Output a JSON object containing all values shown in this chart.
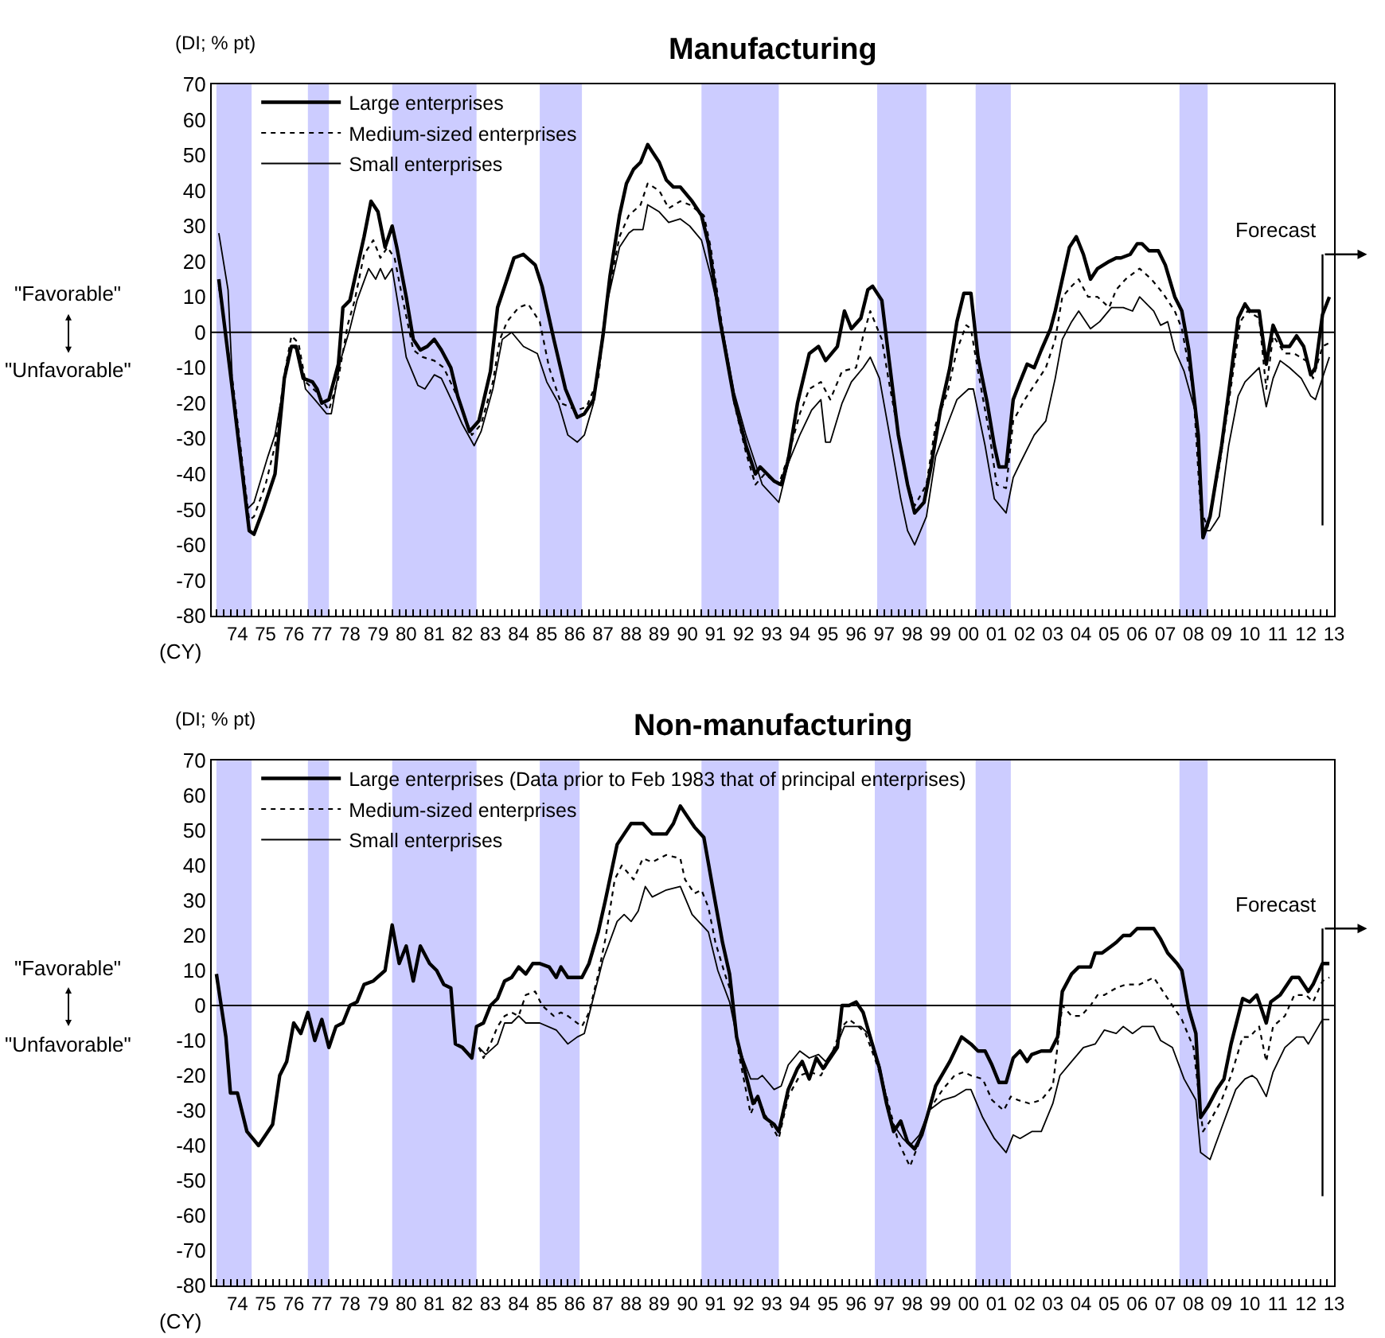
{
  "chart_data": [
    {
      "type": "line",
      "title": "Manufacturing",
      "ylabel": "(DI; % pt)",
      "xlabel": "(CY)",
      "annotations": [
        "\"Favorable\"",
        "\"Unfavorable\""
      ],
      "xlim": [
        "1973-08",
        "2013-07"
      ],
      "ylim": [
        -80,
        70
      ],
      "yticks": [
        -80,
        -70,
        -60,
        -50,
        -40,
        -30,
        -20,
        -10,
        0,
        10,
        20,
        30,
        40,
        50,
        60,
        70
      ],
      "xticks": [
        {
          "value": "1974-07",
          "label": "74"
        },
        {
          "value": "1975-07",
          "label": "75"
        },
        {
          "value": "1976-07",
          "label": "76"
        },
        {
          "value": "1977-07",
          "label": "77"
        },
        {
          "value": "1978-07",
          "label": "78"
        },
        {
          "value": "1979-07",
          "label": "79"
        },
        {
          "value": "1980-07",
          "label": "80"
        },
        {
          "value": "1981-07",
          "label": "81"
        },
        {
          "value": "1982-07",
          "label": "82"
        },
        {
          "value": "1983-07",
          "label": "83"
        },
        {
          "value": "1984-07",
          "label": "84"
        },
        {
          "value": "1985-07",
          "label": "85"
        },
        {
          "value": "1986-07",
          "label": "86"
        },
        {
          "value": "1987-07",
          "label": "87"
        },
        {
          "value": "1988-07",
          "label": "88"
        },
        {
          "value": "1989-07",
          "label": "89"
        },
        {
          "value": "1990-07",
          "label": "90"
        },
        {
          "value": "1991-07",
          "label": "91"
        },
        {
          "value": "1992-07",
          "label": "92"
        },
        {
          "value": "1993-07",
          "label": "93"
        },
        {
          "value": "1994-07",
          "label": "94"
        },
        {
          "value": "1995-07",
          "label": "95"
        },
        {
          "value": "1996-07",
          "label": "96"
        },
        {
          "value": "1997-07",
          "label": "97"
        },
        {
          "value": "1998-07",
          "label": "98"
        },
        {
          "value": "1999-07",
          "label": "99"
        },
        {
          "value": "2000-07",
          "label": "00"
        },
        {
          "value": "2001-07",
          "label": "01"
        },
        {
          "value": "2002-07",
          "label": "02"
        },
        {
          "value": "2003-07",
          "label": "03"
        },
        {
          "value": "2004-07",
          "label": "04"
        },
        {
          "value": "2005-07",
          "label": "05"
        },
        {
          "value": "2006-07",
          "label": "06"
        },
        {
          "value": "2007-07",
          "label": "07"
        },
        {
          "value": "2008-07",
          "label": "08"
        },
        {
          "value": "2009-07",
          "label": "09"
        },
        {
          "value": "2010-07",
          "label": "10"
        },
        {
          "value": "2011-07",
          "label": "11"
        },
        {
          "value": "2012-07",
          "label": "12"
        },
        {
          "value": "2013-07",
          "label": "13"
        }
      ],
      "grid": false,
      "legend": "top left",
      "bands": [
        {
          "axis": "x",
          "from": "1973-10",
          "to": "1975-01",
          "color": "#ccccff"
        },
        {
          "axis": "x",
          "from": "1977-01",
          "to": "1977-10",
          "color": "#ccccff"
        },
        {
          "axis": "x",
          "from": "1980-01",
          "to": "1983-01",
          "color": "#ccccff"
        },
        {
          "axis": "x",
          "from": "1985-04",
          "to": "1986-10",
          "color": "#ccccff"
        },
        {
          "axis": "x",
          "from": "1991-01",
          "to": "1993-10",
          "color": "#ccccff"
        },
        {
          "axis": "x",
          "from": "1997-04",
          "to": "1999-01",
          "color": "#ccccff"
        },
        {
          "axis": "x",
          "from": "2000-10",
          "to": "2002-01",
          "color": "#ccccff"
        },
        {
          "axis": "x",
          "from": "2008-01",
          "to": "2009-01",
          "color": "#ccccff"
        }
      ],
      "ref_lines": [
        {
          "axis": "y",
          "value": 0,
          "color": "#000000"
        },
        {
          "axis": "x",
          "value": "2013-02",
          "label": "Forecast",
          "color": "#000000"
        }
      ],
      "series": [
        {
          "name": "Large enterprises",
          "color": "#000000",
          "line_style": "solid",
          "x": [
            "1973-11",
            "1974-05",
            "1974-12",
            "1975-02",
            "1975-06",
            "1975-11",
            "1976-03",
            "1976-06",
            "1976-08",
            "1976-11",
            "1977-03",
            "1977-05",
            "1977-07",
            "1977-10",
            "1978-02",
            "1978-04",
            "1978-07",
            "1979-01",
            "1979-04",
            "1979-07",
            "1979-10",
            "1980-01",
            "1980-03",
            "1980-07",
            "1980-10",
            "1981-01",
            "1981-04",
            "1981-07",
            "1981-10",
            "1982-02",
            "1982-05",
            "1982-10",
            "1983-02",
            "1983-07",
            "1983-10",
            "1984-02",
            "1984-05",
            "1984-09",
            "1985-02",
            "1985-05",
            "1985-10",
            "1986-03",
            "1986-08",
            "1986-11",
            "1987-03",
            "1987-07",
            "1987-10",
            "1988-02",
            "1988-05",
            "1988-08",
            "1988-11",
            "1989-02",
            "1989-04",
            "1989-07",
            "1989-10",
            "1990-01",
            "1990-04",
            "1990-09",
            "1991-01",
            "1991-04",
            "1991-09",
            "1992-03",
            "1992-08",
            "1992-12",
            "1993-02",
            "1993-08",
            "1993-11",
            "1994-02",
            "1994-06",
            "1994-11",
            "1995-03",
            "1995-06",
            "1995-11",
            "1996-02",
            "1996-05",
            "1996-09",
            "1996-12",
            "1997-02",
            "1997-06",
            "1997-08",
            "1998-01",
            "1998-05",
            "1998-08",
            "1998-12",
            "1999-03",
            "1999-07",
            "1999-11",
            "2000-02",
            "2000-05",
            "2000-08",
            "2000-11",
            "2001-03",
            "2001-06",
            "2001-08",
            "2001-11",
            "2002-02",
            "2002-05",
            "2002-08",
            "2002-11",
            "2003-02",
            "2003-06",
            "2003-08",
            "2003-11",
            "2004-02",
            "2004-05",
            "2004-08",
            "2004-11",
            "2005-02",
            "2005-07",
            "2005-10",
            "2005-12",
            "2006-04",
            "2006-07",
            "2006-09",
            "2006-12",
            "2007-04",
            "2007-07",
            "2007-11",
            "2008-02",
            "2008-05",
            "2008-09",
            "2008-11",
            "2009-02",
            "2009-07",
            "2009-10",
            "2010-02",
            "2010-05",
            "2010-07",
            "2010-11",
            "2011-02",
            "2011-05",
            "2011-09",
            "2011-12",
            "2012-03",
            "2012-06",
            "2012-09",
            "2012-11",
            "2013-02",
            "2013-05"
          ],
          "values": [
            15,
            -17,
            -56,
            -57,
            -50,
            -40,
            -13,
            -4,
            -4,
            -13,
            -14,
            -16,
            -20,
            -19,
            -9,
            7,
            9,
            27,
            37,
            34,
            24,
            30,
            24,
            10,
            -2,
            -5,
            -4,
            -2,
            -5,
            -10,
            -18,
            -28,
            -25,
            -11,
            7,
            15,
            21,
            22,
            19,
            13,
            -2,
            -16,
            -24,
            -23,
            -19,
            -1,
            16,
            33,
            42,
            46,
            48,
            53,
            51,
            48,
            43,
            41,
            41,
            37,
            33,
            25,
            3,
            -19,
            -32,
            -40,
            -38,
            -42,
            -43,
            -36,
            -20,
            -6,
            -4,
            -8,
            -4,
            6,
            1,
            4,
            12,
            13,
            9,
            -2,
            -29,
            -43,
            -51,
            -48,
            -38,
            -22,
            -10,
            3,
            11,
            11,
            -7,
            -20,
            -32,
            -38,
            -38,
            -19,
            -14,
            -9,
            -10,
            -5,
            1,
            6,
            15,
            24,
            27,
            22,
            15,
            18,
            20,
            21,
            21,
            22,
            25,
            25,
            23,
            23,
            19,
            10,
            6,
            -5,
            -29,
            -58,
            -52,
            -32,
            -17,
            4,
            8,
            6,
            6,
            -9,
            2,
            -4,
            -4,
            -1,
            -4,
            -12,
            -10,
            5,
            10
          ]
        },
        {
          "name": "Medium-sized enterprises",
          "color": "#000000",
          "line_style": "dotted",
          "x": [
            "1973-11",
            "1974-05",
            "1974-12",
            "1975-02",
            "1975-07",
            "1975-11",
            "1976-03",
            "1976-06",
            "1976-09",
            "1976-12",
            "1977-05",
            "1977-10",
            "1978-02",
            "1978-06",
            "1978-09",
            "1979-01",
            "1979-05",
            "1979-08",
            "1979-11",
            "1980-02",
            "1980-05",
            "1980-10",
            "1981-02",
            "1981-07",
            "1981-11",
            "1982-04",
            "1982-11",
            "1983-03",
            "1983-08",
            "1983-11",
            "1984-02",
            "1984-07",
            "1984-11",
            "1985-04",
            "1985-08",
            "1986-01",
            "1986-08",
            "1986-12",
            "1987-05",
            "1987-09",
            "1988-02",
            "1988-06",
            "1988-11",
            "1989-02",
            "1989-07",
            "1989-11",
            "1990-04",
            "1990-08",
            "1991-02",
            "1991-05",
            "1991-10",
            "1992-03",
            "1992-08",
            "1992-12",
            "1993-04",
            "1993-10",
            "1994-02",
            "1994-07",
            "1994-11",
            "1995-04",
            "1995-08",
            "1996-01",
            "1996-07",
            "1996-10",
            "1997-01",
            "1997-06",
            "1997-09",
            "1998-02",
            "1998-05",
            "1998-08",
            "1999-01",
            "1999-05",
            "1999-10",
            "2000-02",
            "2000-06",
            "2000-08",
            "2000-11",
            "2001-04",
            "2001-07",
            "2001-11",
            "2002-02",
            "2002-07",
            "2002-11",
            "2003-04",
            "2003-08",
            "2003-11",
            "2004-03",
            "2004-06",
            "2004-10",
            "2005-02",
            "2005-07",
            "2005-10",
            "2006-02",
            "2006-08",
            "2007-01",
            "2007-06",
            "2007-11",
            "2008-02",
            "2008-07",
            "2008-10",
            "2009-01",
            "2009-06",
            "2009-10",
            "2010-03",
            "2010-06",
            "2010-11",
            "2011-02",
            "2011-05",
            "2011-10",
            "2012-02",
            "2012-07",
            "2012-10",
            "2013-02",
            "2013-05"
          ],
          "values": [
            13,
            -14,
            -53,
            -52,
            -43,
            -32,
            -12,
            -1,
            -3,
            -14,
            -17,
            -22,
            -13,
            2,
            9,
            22,
            26,
            21,
            24,
            21,
            11,
            -5,
            -7,
            -8,
            -10,
            -17,
            -29,
            -26,
            -14,
            -2,
            3,
            7,
            8,
            3,
            -10,
            -20,
            -22,
            -21,
            -13,
            10,
            27,
            33,
            36,
            42,
            40,
            35,
            37,
            36,
            33,
            24,
            1,
            -20,
            -34,
            -43,
            -40,
            -43,
            -35,
            -23,
            -16,
            -14,
            -19,
            -11,
            -10,
            -1,
            6,
            -2,
            -14,
            -32,
            -43,
            -49,
            -43,
            -26,
            -17,
            -5,
            2,
            1,
            -11,
            -29,
            -43,
            -44,
            -25,
            -19,
            -15,
            -10,
            -2,
            10,
            13,
            15,
            10,
            10,
            7,
            12,
            15,
            18,
            15,
            11,
            6,
            1,
            -17,
            -50,
            -55,
            -38,
            -20,
            3,
            6,
            4,
            -16,
            -1,
            -6,
            -6,
            -8,
            -13,
            -4,
            -3
          ]
        },
        {
          "name": "Small enterprises",
          "color": "#000000",
          "line_style": "solid",
          "x": [
            "1973-11",
            "1974-03",
            "1974-05",
            "1974-11",
            "1975-02",
            "1975-08",
            "1975-11",
            "1976-03",
            "1976-06",
            "1976-09",
            "1976-12",
            "1977-04",
            "1977-09",
            "1977-11",
            "1978-03",
            "1978-07",
            "1978-10",
            "1979-03",
            "1979-06",
            "1979-08",
            "1979-10",
            "1980-01",
            "1980-04",
            "1980-07",
            "1980-12",
            "1981-03",
            "1981-07",
            "1981-10",
            "1982-03",
            "1982-07",
            "1982-12",
            "1983-03",
            "1983-08",
            "1983-12",
            "1984-04",
            "1984-09",
            "1985-03",
            "1985-07",
            "1985-12",
            "1986-04",
            "1986-08",
            "1986-11",
            "1987-03",
            "1987-08",
            "1988-02",
            "1988-06",
            "1988-08",
            "1988-12",
            "1989-02",
            "1989-07",
            "1989-11",
            "1990-04",
            "1990-08",
            "1991-01",
            "1991-05",
            "1991-10",
            "1992-03",
            "1992-08",
            "1992-12",
            "1993-03",
            "1993-10",
            "1994-02",
            "1994-07",
            "1994-12",
            "1995-04",
            "1995-06",
            "1995-08",
            "1996-01",
            "1996-05",
            "1996-10",
            "1997-01",
            "1997-05",
            "1997-09",
            "1998-02",
            "1998-05",
            "1998-08",
            "1999-01",
            "1999-05",
            "1999-10",
            "2000-02",
            "2000-07",
            "2000-09",
            "2001-02",
            "2001-06",
            "2001-11",
            "2002-02",
            "2002-05",
            "2002-11",
            "2003-04",
            "2003-08",
            "2003-11",
            "2004-03",
            "2004-06",
            "2004-11",
            "2005-03",
            "2005-08",
            "2006-01",
            "2006-05",
            "2006-08",
            "2007-02",
            "2007-05",
            "2007-08",
            "2007-11",
            "2008-03",
            "2008-08",
            "2008-11",
            "2009-02",
            "2009-06",
            "2009-10",
            "2010-02",
            "2010-05",
            "2010-08",
            "2010-11",
            "2011-02",
            "2011-05",
            "2011-08",
            "2011-12",
            "2012-05",
            "2012-09",
            "2012-11",
            "2013-03",
            "2013-05"
          ],
          "values": [
            28,
            12,
            -16,
            -50,
            -48,
            -35,
            -29,
            -14,
            -4,
            -5,
            -16,
            -19,
            -23,
            -23,
            -8,
            1,
            9,
            18,
            15,
            18,
            15,
            18,
            6,
            -7,
            -15,
            -16,
            -12,
            -13,
            -20,
            -26,
            -32,
            -28,
            -16,
            -2,
            0,
            -4,
            -6,
            -14,
            -20,
            -29,
            -31,
            -29,
            -20,
            6,
            24,
            28,
            29,
            29,
            36,
            34,
            31,
            32,
            30,
            26,
            16,
            1,
            -17,
            -29,
            -37,
            -43,
            -48,
            -37,
            -29,
            -22,
            -19,
            -31,
            -31,
            -20,
            -14,
            -10,
            -7,
            -13,
            -28,
            -47,
            -56,
            -60,
            -52,
            -35,
            -26,
            -19,
            -16,
            -16,
            -32,
            -47,
            -51,
            -41,
            -37,
            -29,
            -25,
            -13,
            -2,
            3,
            6,
            1,
            3,
            7,
            7,
            6,
            10,
            6,
            2,
            3,
            -5,
            -11,
            -23,
            -56,
            -56,
            -52,
            -32,
            -18,
            -14,
            -12,
            -10,
            -21,
            -13,
            -8,
            -10,
            -13,
            -18,
            -19,
            -11,
            -7
          ]
        }
      ]
    },
    {
      "type": "line",
      "title": "Non-manufacturing",
      "ylabel": "(DI; % pt)",
      "xlabel": "(CY)",
      "annotations": [
        "\"Favorable\"",
        "\"Unfavorable\""
      ],
      "xlim": [
        "1973-08",
        "2013-07"
      ],
      "ylim": [
        -80,
        70
      ],
      "yticks": [
        -80,
        -70,
        -60,
        -50,
        -40,
        -30,
        -20,
        -10,
        0,
        10,
        20,
        30,
        40,
        50,
        60,
        70
      ],
      "xticks": [
        {
          "value": "1974-07",
          "label": "74"
        },
        {
          "value": "1975-07",
          "label": "75"
        },
        {
          "value": "1976-07",
          "label": "76"
        },
        {
          "value": "1977-07",
          "label": "77"
        },
        {
          "value": "1978-07",
          "label": "78"
        },
        {
          "value": "1979-07",
          "label": "79"
        },
        {
          "value": "1980-07",
          "label": "80"
        },
        {
          "value": "1981-07",
          "label": "81"
        },
        {
          "value": "1982-07",
          "label": "82"
        },
        {
          "value": "1983-07",
          "label": "83"
        },
        {
          "value": "1984-07",
          "label": "84"
        },
        {
          "value": "1985-07",
          "label": "85"
        },
        {
          "value": "1986-07",
          "label": "86"
        },
        {
          "value": "1987-07",
          "label": "87"
        },
        {
          "value": "1988-07",
          "label": "88"
        },
        {
          "value": "1989-07",
          "label": "89"
        },
        {
          "value": "1990-07",
          "label": "90"
        },
        {
          "value": "1991-07",
          "label": "91"
        },
        {
          "value": "1992-07",
          "label": "92"
        },
        {
          "value": "1993-07",
          "label": "93"
        },
        {
          "value": "1994-07",
          "label": "94"
        },
        {
          "value": "1995-07",
          "label": "95"
        },
        {
          "value": "1996-07",
          "label": "96"
        },
        {
          "value": "1997-07",
          "label": "97"
        },
        {
          "value": "1998-07",
          "label": "98"
        },
        {
          "value": "1999-07",
          "label": "99"
        },
        {
          "value": "2000-07",
          "label": "00"
        },
        {
          "value": "2001-07",
          "label": "01"
        },
        {
          "value": "2002-07",
          "label": "02"
        },
        {
          "value": "2003-07",
          "label": "03"
        },
        {
          "value": "2004-07",
          "label": "04"
        },
        {
          "value": "2005-07",
          "label": "05"
        },
        {
          "value": "2006-07",
          "label": "06"
        },
        {
          "value": "2007-07",
          "label": "07"
        },
        {
          "value": "2008-07",
          "label": "08"
        },
        {
          "value": "2009-07",
          "label": "09"
        },
        {
          "value": "2010-07",
          "label": "10"
        },
        {
          "value": "2011-07",
          "label": "11"
        },
        {
          "value": "2012-07",
          "label": "12"
        },
        {
          "value": "2013-07",
          "label": "13"
        }
      ],
      "grid": false,
      "legend": "top left",
      "bands": [
        {
          "axis": "x",
          "from": "1973-10",
          "to": "1975-01",
          "color": "#ccccff"
        },
        {
          "axis": "x",
          "from": "1977-01",
          "to": "1977-10",
          "color": "#ccccff"
        },
        {
          "axis": "x",
          "from": "1980-01",
          "to": "1983-01",
          "color": "#ccccff"
        },
        {
          "axis": "x",
          "from": "1985-04",
          "to": "1986-09",
          "color": "#ccccff"
        },
        {
          "axis": "x",
          "from": "1991-01",
          "to": "1993-10",
          "color": "#ccccff"
        },
        {
          "axis": "x",
          "from": "1997-03",
          "to": "1999-01",
          "color": "#ccccff"
        },
        {
          "axis": "x",
          "from": "2000-10",
          "to": "2002-01",
          "color": "#ccccff"
        },
        {
          "axis": "x",
          "from": "2008-01",
          "to": "2009-01",
          "color": "#ccccff"
        }
      ],
      "ref_lines": [
        {
          "axis": "y",
          "value": 0,
          "color": "#000000"
        },
        {
          "axis": "x",
          "value": "2013-02",
          "label": "Forecast",
          "color": "#000000"
        }
      ],
      "series": [
        {
          "name": "Large enterprises (Data prior to Feb 1983 that of principal enterprises)",
          "color": "#000000",
          "line_style": "solid",
          "x": [
            "1973-10",
            "1974-02",
            "1974-04",
            "1974-07",
            "1974-11",
            "1975-04",
            "1975-08",
            "1975-10",
            "1976-01",
            "1976-04",
            "1976-07",
            "1976-10",
            "1977-01",
            "1977-04",
            "1977-07",
            "1977-10",
            "1978-01",
            "1978-04",
            "1978-07",
            "1978-10",
            "1979-01",
            "1979-05",
            "1979-10",
            "1980-01",
            "1980-04",
            "1980-07",
            "1980-10",
            "1981-01",
            "1981-05",
            "1981-08",
            "1981-11",
            "1982-02",
            "1982-04",
            "1982-07",
            "1982-11",
            "1983-01",
            "1983-04",
            "1983-07",
            "1983-10",
            "1984-01",
            "1984-04",
            "1984-07",
            "1984-10",
            "1985-01",
            "1985-04",
            "1985-08",
            "1985-11",
            "1986-01",
            "1986-04",
            "1986-08",
            "1986-10",
            "1987-01",
            "1987-05",
            "1987-08",
            "1988-01",
            "1988-04",
            "1988-07",
            "1988-12",
            "1989-04",
            "1989-10",
            "1990-01",
            "1990-04",
            "1990-07",
            "1990-10",
            "1991-02",
            "1991-06",
            "1991-10",
            "1992-01",
            "1992-04",
            "1992-08",
            "1992-11",
            "1993-01",
            "1993-04",
            "1993-08",
            "1993-10",
            "1994-02",
            "1994-06",
            "1994-08",
            "1994-11",
            "1995-02",
            "1995-05",
            "1995-08",
            "1995-11",
            "1996-01",
            "1996-04",
            "1996-07",
            "1996-10",
            "1997-01",
            "1997-05",
            "1997-08",
            "1997-11",
            "1998-02",
            "1998-05",
            "1998-08",
            "1998-11",
            "1999-02",
            "1999-05",
            "1999-11",
            "2000-04",
            "2000-08",
            "2000-11",
            "2001-02",
            "2001-05",
            "2001-08",
            "2001-11",
            "2002-02",
            "2002-05",
            "2002-08",
            "2002-10",
            "2003-02",
            "2003-06",
            "2003-09",
            "2003-11",
            "2004-03",
            "2004-06",
            "2004-11",
            "2005-01",
            "2005-04",
            "2005-08",
            "2005-10",
            "2006-01",
            "2006-04",
            "2006-07",
            "2006-09",
            "2007-02",
            "2007-05",
            "2007-08",
            "2007-12",
            "2008-02",
            "2008-05",
            "2008-08",
            "2008-10",
            "2009-01",
            "2009-05",
            "2009-08",
            "2009-11",
            "2010-04",
            "2010-07",
            "2010-10",
            "2011-02",
            "2011-04",
            "2011-08",
            "2011-10",
            "2012-01",
            "2012-04",
            "2012-08",
            "2012-10",
            "2013-02",
            "2013-05"
          ],
          "values": [
            9,
            -9,
            -25,
            -25,
            -36,
            -40,
            -36,
            -34,
            -20,
            -16,
            -5,
            -8,
            -2,
            -10,
            -4,
            -12,
            -6,
            -5,
            0,
            1,
            6,
            7,
            10,
            23,
            12,
            17,
            7,
            17,
            12,
            10,
            6,
            5,
            -11,
            -12,
            -15,
            -6,
            -5,
            0,
            2,
            7,
            8,
            11,
            9,
            12,
            12,
            11,
            8,
            11,
            8,
            8,
            8,
            12,
            21,
            30,
            46,
            49,
            52,
            52,
            49,
            49,
            52,
            57,
            54,
            51,
            48,
            33,
            18,
            9,
            -9,
            -20,
            -28,
            -26,
            -32,
            -34,
            -36,
            -24,
            -18,
            -16,
            -21,
            -15,
            -18,
            -15,
            -12,
            0,
            0,
            1,
            -2,
            -9,
            -18,
            -28,
            -36,
            -33,
            -39,
            -41,
            -37,
            -30,
            -23,
            -16,
            -9,
            -11,
            -13,
            -13,
            -17,
            -22,
            -22,
            -15,
            -13,
            -16,
            -14,
            -13,
            -13,
            -9,
            4,
            9,
            11,
            11,
            15,
            15,
            17,
            18,
            20,
            20,
            22,
            22,
            22,
            19,
            15,
            12,
            10,
            -1,
            -8,
            -32,
            -29,
            -24,
            -21,
            -11,
            2,
            1,
            3,
            -5,
            1,
            3,
            5,
            8,
            8,
            4,
            6,
            12,
            12
          ]
        },
        {
          "name": "Medium-sized enterprises",
          "color": "#000000",
          "line_style": "dotted",
          "x": [
            "1983-02",
            "1983-04",
            "1983-07",
            "1983-10",
            "1984-01",
            "1984-04",
            "1984-07",
            "1984-10",
            "1985-02",
            "1985-05",
            "1985-10",
            "1986-01",
            "1986-04",
            "1986-10",
            "1987-01",
            "1987-05",
            "1987-08",
            "1987-12",
            "1988-03",
            "1988-08",
            "1988-12",
            "1989-04",
            "1989-10",
            "1990-04",
            "1990-06",
            "1990-10",
            "1991-01",
            "1991-04",
            "1991-07",
            "1991-11",
            "1992-02",
            "1992-05",
            "1992-10",
            "1993-01",
            "1993-04",
            "1993-10",
            "1994-02",
            "1994-07",
            "1994-11",
            "1995-04",
            "1995-08",
            "1996-01",
            "1996-04",
            "1996-08",
            "1996-11",
            "1997-04",
            "1997-08",
            "1998-01",
            "1998-06",
            "1998-10",
            "1999-02",
            "1999-08",
            "2000-01",
            "2000-05",
            "2000-08",
            "2001-01",
            "2001-05",
            "2001-10",
            "2002-01",
            "2002-04",
            "2002-09",
            "2003-02",
            "2003-07",
            "2003-11",
            "2004-03",
            "2004-07",
            "2004-11",
            "2005-02",
            "2005-05",
            "2005-10",
            "2006-02",
            "2006-08",
            "2007-02",
            "2007-06",
            "2007-10",
            "2008-02",
            "2008-07",
            "2008-11",
            "2009-02",
            "2009-07",
            "2009-11",
            "2010-04",
            "2010-07",
            "2010-11",
            "2011-02",
            "2011-05",
            "2011-10",
            "2012-02",
            "2012-07",
            "2012-10",
            "2013-02",
            "2013-05"
          ],
          "values": [
            -12,
            -15,
            -11,
            -6,
            -3,
            -2,
            -3,
            3,
            4,
            0,
            -3,
            -2,
            -3,
            -6,
            -2,
            9,
            19,
            36,
            40,
            36,
            42,
            41,
            43,
            42,
            36,
            32,
            33,
            28,
            18,
            9,
            3,
            -14,
            -31,
            -26,
            -31,
            -38,
            -26,
            -20,
            -19,
            -20,
            -15,
            -6,
            -4,
            -6,
            -8,
            -17,
            -26,
            -39,
            -46,
            -39,
            -30,
            -24,
            -20,
            -19,
            -20,
            -21,
            -27,
            -30,
            -26,
            -27,
            -28,
            -27,
            -23,
            0,
            -3,
            -3,
            0,
            3,
            3,
            5,
            6,
            6,
            8,
            4,
            0,
            -4,
            -12,
            -36,
            -33,
            -27,
            -20,
            -9,
            -9,
            -6,
            -16,
            -6,
            -3,
            3,
            3,
            1,
            7,
            8
          ]
        },
        {
          "name": "Small enterprises",
          "color": "#000000",
          "line_style": "solid",
          "x": [
            "1983-02",
            "1983-05",
            "1983-10",
            "1984-01",
            "1984-04",
            "1984-07",
            "1984-10",
            "1985-04",
            "1985-11",
            "1986-04",
            "1986-08",
            "1986-11",
            "1987-02",
            "1987-07",
            "1988-01",
            "1988-04",
            "1988-07",
            "1988-10",
            "1989-01",
            "1989-04",
            "1989-10",
            "1990-04",
            "1990-09",
            "1991-04",
            "1991-08",
            "1992-01",
            "1992-05",
            "1992-10",
            "1993-01",
            "1993-03",
            "1993-08",
            "1993-11",
            "1994-02",
            "1994-07",
            "1994-11",
            "1995-03",
            "1995-06",
            "1995-11",
            "1996-02",
            "1996-05",
            "1996-09",
            "1996-12",
            "1997-05",
            "1997-10",
            "1998-03",
            "1998-06",
            "1998-10",
            "1999-02",
            "1999-08",
            "2000-01",
            "2000-06",
            "2000-08",
            "2001-01",
            "2001-06",
            "2001-11",
            "2002-02",
            "2002-05",
            "2002-10",
            "2003-02",
            "2003-07",
            "2003-10",
            "2004-03",
            "2004-08",
            "2005-01",
            "2005-05",
            "2005-10",
            "2006-01",
            "2006-05",
            "2006-09",
            "2007-02",
            "2007-05",
            "2007-10",
            "2008-03",
            "2008-08",
            "2008-10",
            "2009-02",
            "2009-07",
            "2010-01",
            "2010-05",
            "2010-08",
            "2010-10",
            "2011-02",
            "2011-05",
            "2011-10",
            "2012-03",
            "2012-06",
            "2012-08",
            "2013-02",
            "2013-05"
          ],
          "values": [
            -12,
            -14,
            -11,
            -5,
            -5,
            -3,
            -5,
            -5,
            -7,
            -11,
            -9,
            -8,
            0,
            13,
            24,
            26,
            24,
            27,
            34,
            31,
            33,
            34,
            26,
            21,
            10,
            1,
            -12,
            -21,
            -21,
            -20,
            -24,
            -23,
            -17,
            -13,
            -15,
            -14,
            -16,
            -11,
            -6,
            -6,
            -6,
            -8,
            -17,
            -33,
            -38,
            -40,
            -37,
            -30,
            -27,
            -26,
            -24,
            -24,
            -32,
            -38,
            -42,
            -37,
            -38,
            -36,
            -36,
            -28,
            -20,
            -16,
            -12,
            -11,
            -7,
            -8,
            -6,
            -8,
            -6,
            -6,
            -10,
            -12,
            -21,
            -27,
            -42,
            -44,
            -35,
            -24,
            -21,
            -20,
            -21,
            -26,
            -19,
            -12,
            -9,
            -9,
            -11,
            -4,
            -4
          ]
        }
      ]
    }
  ]
}
